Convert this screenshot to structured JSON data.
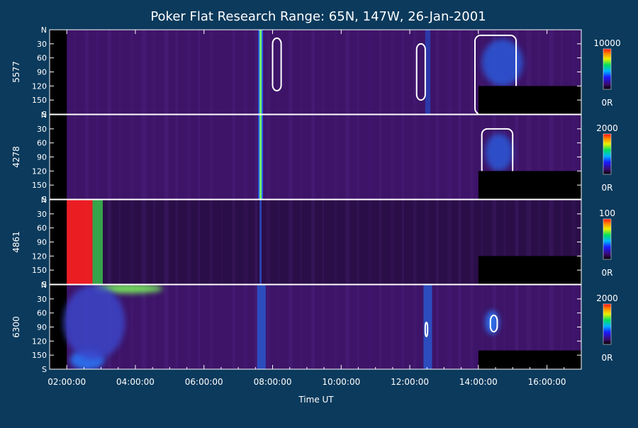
{
  "chart_data": {
    "type": "heatmap",
    "title": "Poker Flat Research Range: 65N, 147W, 26-Jan-2001",
    "xlabel": "Time UT",
    "x_ticks": [
      "02:00:00",
      "04:00:00",
      "06:00:00",
      "08:00:00",
      "10:00:00",
      "12:00:00",
      "14:00:00",
      "16:00:00"
    ],
    "x_tick_hours": [
      2,
      4,
      6,
      8,
      10,
      12,
      14,
      16
    ],
    "x_range_hours": [
      1.5,
      17.0
    ],
    "y_ticks": [
      "N",
      "30",
      "60",
      "90",
      "120",
      "150",
      "S"
    ],
    "y_tick_values": [
      0,
      30,
      60,
      90,
      120,
      150,
      180
    ],
    "y_range": [
      0,
      180
    ],
    "background_color": "#0b3a5c",
    "panels": [
      {
        "label": "5577",
        "colorbar_max": "10000",
        "colorbar_min": "0R",
        "base_color": "#3d1468",
        "features": [
          {
            "kind": "band",
            "t0": 7.58,
            "t1": 7.72,
            "color": "#2a6cff"
          },
          {
            "kind": "band",
            "t0": 7.62,
            "t1": 7.68,
            "color": "#7cff5a"
          },
          {
            "kind": "band",
            "t0": 12.45,
            "t1": 12.6,
            "color": "#2a3cb0"
          },
          {
            "kind": "blob",
            "t": 14.7,
            "y": 70,
            "rt": 0.6,
            "ry": 50,
            "color": "#2a58d8"
          },
          {
            "kind": "contour",
            "t0": 13.9,
            "t1": 15.1,
            "y0": 12,
            "y1": 180
          },
          {
            "kind": "contour",
            "t0": 8.0,
            "t1": 8.25,
            "y0": 18,
            "y1": 130
          },
          {
            "kind": "contour",
            "t0": 12.2,
            "t1": 12.45,
            "y0": 30,
            "y1": 150
          },
          {
            "kind": "blank",
            "t0": 14.0,
            "t1": 17.0,
            "y0": 120,
            "y1": 180
          }
        ]
      },
      {
        "label": "4278",
        "colorbar_max": "2000",
        "colorbar_min": "0R",
        "base_color": "#3d1468",
        "features": [
          {
            "kind": "band",
            "t0": 7.58,
            "t1": 7.72,
            "color": "#2a6cff"
          },
          {
            "kind": "band",
            "t0": 7.62,
            "t1": 7.68,
            "color": "#7cff5a"
          },
          {
            "kind": "blob",
            "t": 14.6,
            "y": 80,
            "rt": 0.4,
            "ry": 40,
            "color": "#2a58d8"
          },
          {
            "kind": "contour",
            "t0": 14.1,
            "t1": 15.0,
            "y0": 30,
            "y1": 130
          },
          {
            "kind": "blank",
            "t0": 14.0,
            "t1": 17.0,
            "y0": 120,
            "y1": 180
          }
        ]
      },
      {
        "label": "4861",
        "colorbar_max": "100",
        "colorbar_min": "0R",
        "base_color": "#2a0e48",
        "features": [
          {
            "kind": "band",
            "t0": 2.0,
            "t1": 2.75,
            "color": "#ff1f1f"
          },
          {
            "kind": "band",
            "t0": 2.75,
            "t1": 3.05,
            "color": "#39b44a"
          },
          {
            "kind": "band",
            "t0": 7.62,
            "t1": 7.68,
            "color": "#2a4ac0"
          },
          {
            "kind": "blank",
            "t0": 14.0,
            "t1": 17.0,
            "y0": 120,
            "y1": 180
          }
        ]
      },
      {
        "label": "6300",
        "colorbar_max": "2000",
        "colorbar_min": "0R",
        "base_color": "#3d1468",
        "features": [
          {
            "kind": "blob",
            "t": 3.8,
            "y": 8,
            "rt": 1.0,
            "ry": 10,
            "color": "#7cff5a"
          },
          {
            "kind": "blob",
            "t": 2.6,
            "y": 160,
            "rt": 0.5,
            "ry": 22,
            "color": "#2a7cff"
          },
          {
            "kind": "blob",
            "t": 2.8,
            "y": 80,
            "rt": 0.9,
            "ry": 80,
            "color": "#3b44c8"
          },
          {
            "kind": "band",
            "t0": 7.55,
            "t1": 7.8,
            "color": "#2a52c8"
          },
          {
            "kind": "band",
            "t0": 12.4,
            "t1": 12.65,
            "color": "#2a52c8"
          },
          {
            "kind": "blob",
            "t": 14.4,
            "y": 80,
            "rt": 0.2,
            "ry": 25,
            "color": "#2a7cff"
          },
          {
            "kind": "contour",
            "t0": 14.35,
            "t1": 14.55,
            "y0": 65,
            "y1": 100
          },
          {
            "kind": "contour",
            "t0": 12.45,
            "t1": 12.52,
            "y0": 80,
            "y1": 110
          },
          {
            "kind": "blank",
            "t0": 14.0,
            "t1": 17.0,
            "y0": 140,
            "y1": 180
          }
        ]
      }
    ]
  }
}
